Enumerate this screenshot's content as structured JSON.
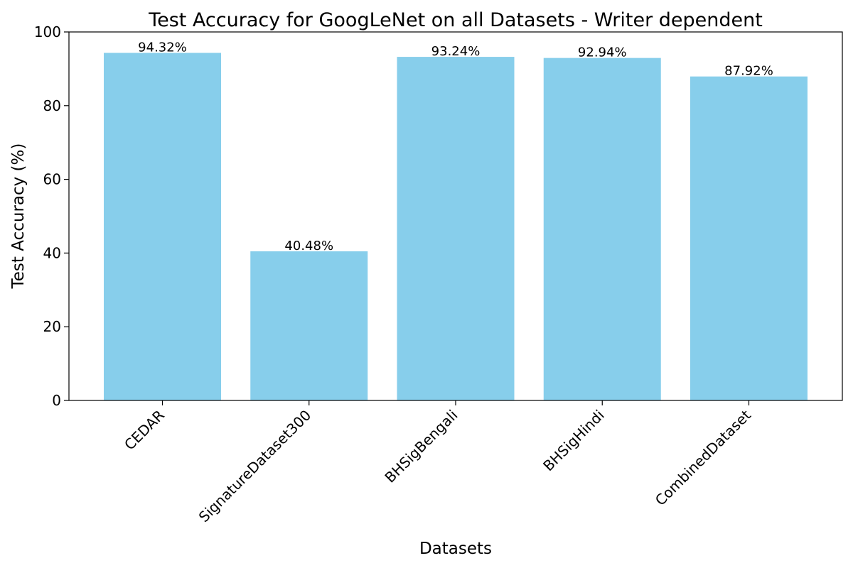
{
  "chart_data": {
    "type": "bar",
    "title": "Test Accuracy for GoogLeNet on all Datasets - Writer dependent",
    "xlabel": "Datasets",
    "ylabel": "Test Accuracy (%)",
    "categories": [
      "CEDAR",
      "SignatureDataset300",
      "BHSigBengali",
      "BHSigHindi",
      "CombinedDataset"
    ],
    "values": [
      94.32,
      40.48,
      93.24,
      92.94,
      87.92
    ],
    "value_labels": [
      "94.32%",
      "40.48%",
      "93.24%",
      "92.94%",
      "87.92%"
    ],
    "ylim": [
      0,
      100
    ],
    "yticks": [
      0,
      20,
      40,
      60,
      80,
      100
    ],
    "grid": false,
    "legend": "none",
    "bar_color": "#87CEEB"
  }
}
